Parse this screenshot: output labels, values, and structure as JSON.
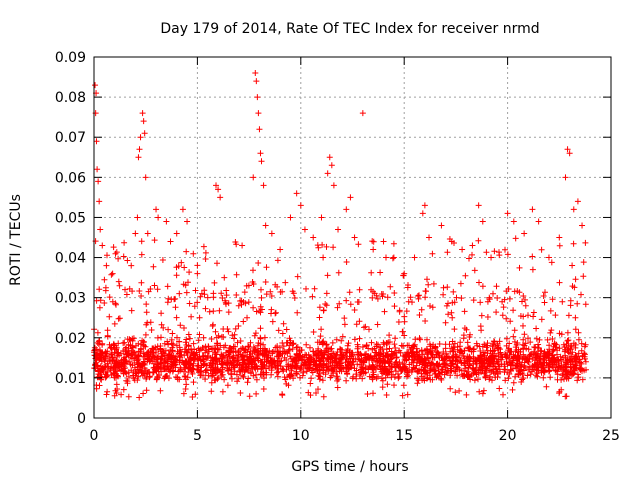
{
  "chart_data": {
    "type": "scatter",
    "title": "Day 179 of 2014, Rate Of TEC Index for receiver nrmd",
    "xlabel": "GPS time / hours",
    "ylabel": "ROTI / TECUs",
    "xlim": [
      0,
      25
    ],
    "ylim": [
      0,
      0.09
    ],
    "xticks": [
      0,
      5,
      10,
      15,
      20,
      25
    ],
    "yticks": [
      0,
      0.01,
      0.02,
      0.03,
      0.04,
      0.05,
      0.06,
      0.07,
      0.08,
      0.09
    ],
    "xtick_labels": [
      "0",
      "5",
      "10",
      "15",
      "20",
      "25"
    ],
    "ytick_labels": [
      "0",
      "0.01",
      "0.02",
      "0.03",
      "0.04",
      "0.05",
      "0.06",
      "0.07",
      "0.08",
      "0.09"
    ],
    "grid": true,
    "marker": "+",
    "series": [
      {
        "name": "ROTI",
        "color": "#ff0000",
        "x_range_hours": [
          0,
          23.8
        ],
        "typical_band": [
          0.005,
          0.025
        ],
        "points": [
          [
            0.05,
            0.083
          ],
          [
            0.1,
            0.081
          ],
          [
            0.08,
            0.076
          ],
          [
            0.12,
            0.069
          ],
          [
            0.15,
            0.062
          ],
          [
            0.2,
            0.059
          ],
          [
            0.25,
            0.054
          ],
          [
            0.3,
            0.047
          ],
          [
            0.4,
            0.043
          ],
          [
            0.6,
            0.038
          ],
          [
            0.9,
            0.036
          ],
          [
            1.2,
            0.034
          ],
          [
            1.5,
            0.032
          ],
          [
            1.8,
            0.038
          ],
          [
            2.0,
            0.046
          ],
          [
            2.1,
            0.05
          ],
          [
            2.15,
            0.065
          ],
          [
            2.2,
            0.067
          ],
          [
            2.25,
            0.07
          ],
          [
            2.35,
            0.076
          ],
          [
            2.4,
            0.074
          ],
          [
            2.45,
            0.071
          ],
          [
            2.5,
            0.06
          ],
          [
            2.6,
            0.046
          ],
          [
            3.0,
            0.052
          ],
          [
            3.1,
            0.05
          ],
          [
            3.5,
            0.049
          ],
          [
            3.7,
            0.044
          ],
          [
            4.0,
            0.046
          ],
          [
            4.3,
            0.052
          ],
          [
            4.5,
            0.049
          ],
          [
            5.0,
            0.036
          ],
          [
            5.5,
            0.03
          ],
          [
            5.9,
            0.058
          ],
          [
            6.0,
            0.057
          ],
          [
            6.1,
            0.055
          ],
          [
            6.3,
            0.035
          ],
          [
            7.0,
            0.028
          ],
          [
            7.4,
            0.025
          ],
          [
            7.7,
            0.06
          ],
          [
            7.8,
            0.086
          ],
          [
            7.85,
            0.084
          ],
          [
            7.9,
            0.08
          ],
          [
            7.95,
            0.076
          ],
          [
            8.0,
            0.072
          ],
          [
            8.05,
            0.066
          ],
          [
            8.1,
            0.064
          ],
          [
            8.2,
            0.058
          ],
          [
            8.3,
            0.048
          ],
          [
            8.6,
            0.046
          ],
          [
            9.0,
            0.042
          ],
          [
            9.5,
            0.05
          ],
          [
            9.8,
            0.056
          ],
          [
            10.0,
            0.053
          ],
          [
            10.2,
            0.047
          ],
          [
            10.6,
            0.045
          ],
          [
            11.0,
            0.05
          ],
          [
            11.3,
            0.061
          ],
          [
            11.4,
            0.065
          ],
          [
            11.5,
            0.063
          ],
          [
            11.6,
            0.058
          ],
          [
            11.8,
            0.047
          ],
          [
            12.2,
            0.052
          ],
          [
            12.4,
            0.055
          ],
          [
            12.6,
            0.045
          ],
          [
            13.0,
            0.076
          ],
          [
            13.5,
            0.042
          ],
          [
            14.0,
            0.044
          ],
          [
            14.5,
            0.04
          ],
          [
            15.0,
            0.036
          ],
          [
            15.5,
            0.04
          ],
          [
            15.9,
            0.051
          ],
          [
            16.0,
            0.053
          ],
          [
            16.2,
            0.045
          ],
          [
            16.8,
            0.048
          ],
          [
            17.3,
            0.044
          ],
          [
            17.8,
            0.042
          ],
          [
            18.3,
            0.043
          ],
          [
            18.6,
            0.053
          ],
          [
            18.8,
            0.049
          ],
          [
            19.2,
            0.04
          ],
          [
            20.0,
            0.051
          ],
          [
            20.3,
            0.049
          ],
          [
            20.8,
            0.046
          ],
          [
            21.2,
            0.052
          ],
          [
            21.5,
            0.049
          ],
          [
            22.0,
            0.04
          ],
          [
            22.5,
            0.045
          ],
          [
            22.8,
            0.06
          ],
          [
            22.9,
            0.067
          ],
          [
            23.0,
            0.066
          ],
          [
            23.2,
            0.052
          ],
          [
            23.4,
            0.054
          ],
          [
            23.6,
            0.048
          ]
        ]
      }
    ]
  }
}
